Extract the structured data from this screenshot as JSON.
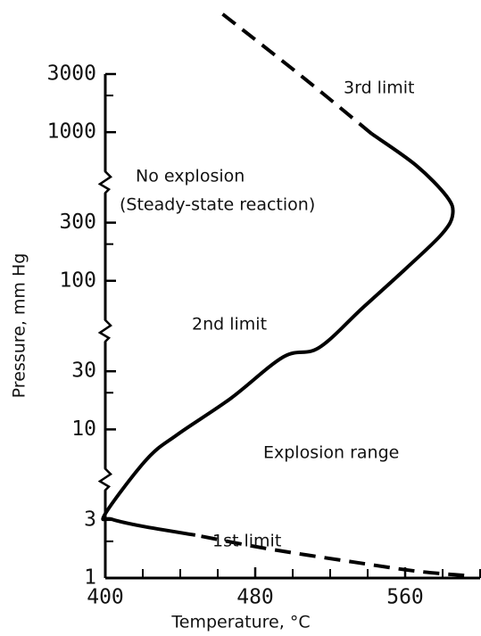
{
  "chart_data": {
    "type": "line",
    "xlabel": "Temperature, °C",
    "ylabel": "Pressure, mm Hg",
    "xlim": [
      400,
      600
    ],
    "xticks": [
      400,
      480,
      560
    ],
    "xminorticks": [
      420,
      440,
      460,
      500,
      520,
      540,
      580,
      600
    ],
    "ylim": [
      1,
      3000
    ],
    "ylog": true,
    "yticks": [
      1,
      3,
      10,
      30,
      100,
      300,
      1000,
      3000
    ],
    "yminorticks": [
      2,
      20,
      200,
      2000
    ],
    "axis_breaks": [
      5,
      50,
      500
    ],
    "color": "#000000",
    "series": [
      {
        "name": "1st limit",
        "dashed": true,
        "x": [
          591.5,
          565.6,
          532.7,
          485.6,
          448
        ],
        "y": [
          1.05,
          1.14,
          1.35,
          1.75,
          2.25
        ]
      },
      {
        "name": "2nd limit",
        "dashed": false,
        "x": [
          448,
          419.8,
          403.3,
          400,
          422.1,
          438.6,
          466.8,
          495.1,
          513.9,
          537.4,
          560.9,
          579.8,
          585.4,
          582.1,
          565.6,
          542.1
        ],
        "y": [
          2.25,
          2.66,
          3.04,
          3.37,
          5.68,
          9.1,
          17.9,
          39.4,
          46.7,
          60.1,
          128,
          244,
          353,
          494,
          538,
          971
        ]
      },
      {
        "name": "3rd limit",
        "dashed": true,
        "x": [
          542.1,
          504.5,
          462.1
        ],
        "y": [
          971,
          2900,
          9440
        ]
      }
    ],
    "annotations": [
      "No explosion",
      "(Steady-state reaction)",
      "Explosion range"
    ]
  }
}
